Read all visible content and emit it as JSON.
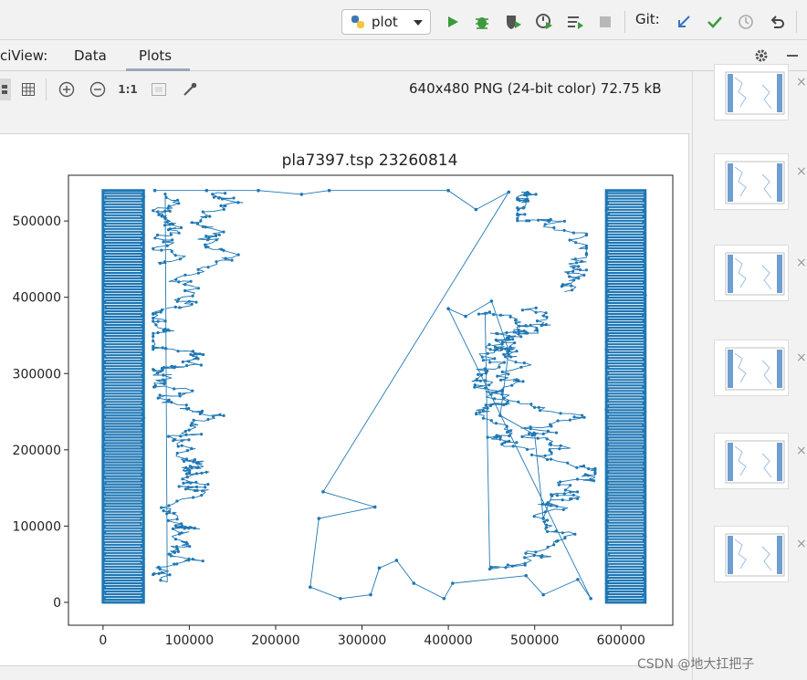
{
  "toolbar": {
    "run_config_label": "plot",
    "git_label": "Git:"
  },
  "tool_window": {
    "title": "ciView:",
    "tabs": [
      {
        "label": "Data",
        "selected": false
      },
      {
        "label": "Plots",
        "selected": true
      }
    ]
  },
  "plot_toolbar": {
    "zoom_actual_label": "1:1",
    "image_info": "640x480 PNG (24-bit color) 72.75 kB"
  },
  "chart_data": {
    "type": "line",
    "title": "pla7397.tsp 23260814",
    "xlabel": "",
    "ylabel": "",
    "xlim": [
      -40000,
      660000
    ],
    "ylim": [
      -30000,
      560000
    ],
    "xticks": [
      0,
      100000,
      200000,
      300000,
      400000,
      500000,
      600000
    ],
    "yticks": [
      0,
      100000,
      200000,
      300000,
      400000,
      500000
    ],
    "xtick_labels": [
      "0",
      "100000",
      "200000",
      "300000",
      "400000",
      "500000",
      "600000"
    ],
    "ytick_labels": [
      "0",
      "100000",
      "200000",
      "300000",
      "400000",
      "500000"
    ],
    "grid": false,
    "line_color": "#1f77b4",
    "marker": "dot",
    "description_regions": {
      "dense_left_band": [
        0,
        47000,
        0,
        540000
      ],
      "dense_right_band": [
        583000,
        628000,
        0,
        540000
      ]
    },
    "highlight_points": [
      [
        60000,
        540000
      ],
      [
        120000,
        540000
      ],
      [
        180000,
        540000
      ],
      [
        230000,
        535000
      ],
      [
        262000,
        540000
      ],
      [
        400000,
        540000
      ],
      [
        432000,
        515000
      ],
      [
        470000,
        538000
      ],
      [
        255000,
        145000
      ],
      [
        315000,
        125000
      ],
      [
        250000,
        110000
      ],
      [
        240000,
        20000
      ],
      [
        275000,
        5000
      ],
      [
        310000,
        10000
      ],
      [
        320000,
        45000
      ],
      [
        340000,
        55000
      ],
      [
        360000,
        25000
      ],
      [
        395000,
        5000
      ],
      [
        405000,
        25000
      ],
      [
        490000,
        35000
      ],
      [
        510000,
        10000
      ],
      [
        550000,
        30000
      ],
      [
        565000,
        5000
      ],
      [
        400000,
        385000
      ],
      [
        420000,
        375000
      ],
      [
        450000,
        395000
      ],
      [
        470000,
        330000
      ],
      [
        460000,
        245000
      ],
      [
        500000,
        220000
      ],
      [
        510000,
        110000
      ],
      [
        520000,
        140000
      ]
    ]
  },
  "thumbnails": [
    {
      "close_label": "×"
    },
    {
      "close_label": "×"
    },
    {
      "close_label": "×"
    },
    {
      "close_label": "×"
    },
    {
      "close_label": "×"
    },
    {
      "close_label": "×"
    }
  ],
  "watermark": "CSDN @地大扛把子"
}
